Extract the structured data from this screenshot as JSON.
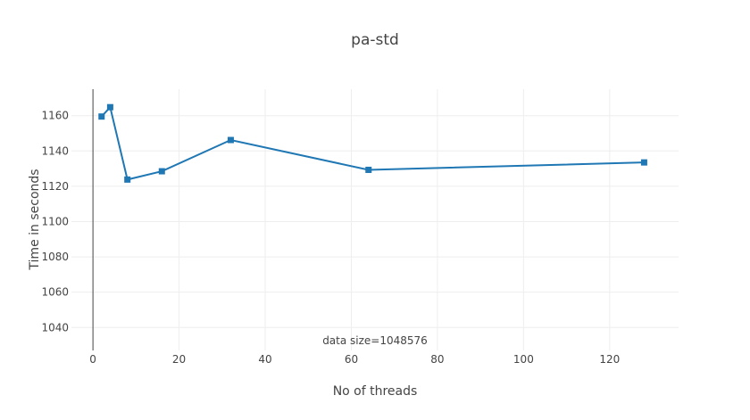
{
  "chart_data": {
    "type": "line",
    "title": "pa-std",
    "xlabel": "No of threads",
    "ylabel": "Time in seconds",
    "annotation": "data size=1048576",
    "x": [
      2,
      4,
      8,
      16,
      32,
      64,
      128
    ],
    "series": [
      {
        "values": [
          1159.5,
          1164.8,
          1123.8,
          1128.5,
          1146.2,
          1129.3,
          1133.5
        ]
      }
    ],
    "xlim": [
      -5,
      136
    ],
    "ylim": [
      1027,
      1175
    ],
    "xticks": [
      0,
      20,
      40,
      60,
      80,
      100,
      120
    ],
    "yticks": [
      1040,
      1060,
      1080,
      1100,
      1120,
      1140,
      1160
    ],
    "grid": true,
    "colors": {
      "series": "#1f77b4",
      "grid": "#eeeeee",
      "axis": "#444444"
    },
    "marker": "square"
  }
}
